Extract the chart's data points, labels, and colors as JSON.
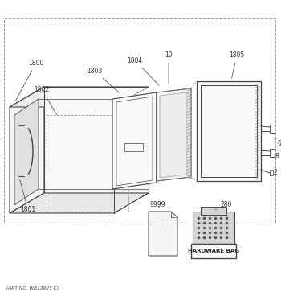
{
  "art_no": "(ART NO. WB13925 C)",
  "hardware_bag_label": "HARDWARE BAG",
  "bg_color": "#ffffff",
  "lc": "#444444",
  "dc": "#999999",
  "gc": "#bbbbbb"
}
